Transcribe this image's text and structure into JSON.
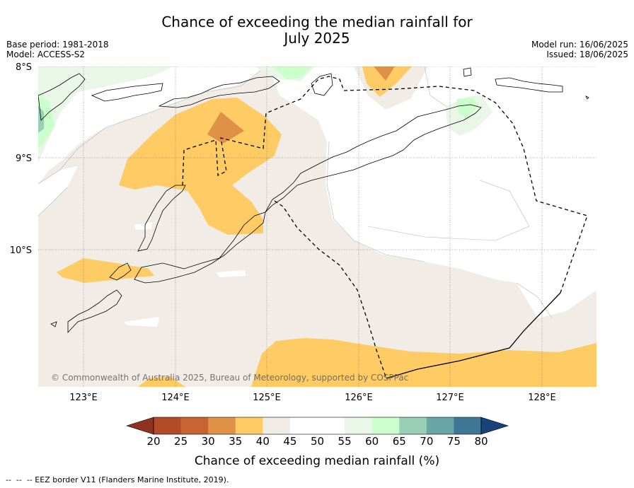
{
  "title_line1": "Chance of exceeding the median rainfall for",
  "title_line2": "July 2025",
  "base_period": "Base period: 1981-2018",
  "model": "Model: ACCESS-S2",
  "model_run": "Model run: 16/06/2025",
  "issued": "Issued: 18/06/2025",
  "lat_labels": [
    "8°S",
    "9°S",
    "10°S"
  ],
  "lon_labels": [
    "123°E",
    "124°E",
    "125°E",
    "126°E",
    "127°E",
    "128°E"
  ],
  "copyright": "© Commonwealth of Australia 2025, Bureau of Meteorology, supported by COSPPac",
  "colorbar": {
    "title": "Chance of exceeding median rainfall (%)",
    "ticks": [
      "20",
      "25",
      "30",
      "35",
      "40",
      "45",
      "50",
      "55",
      "60",
      "65",
      "70",
      "75",
      "80"
    ],
    "colors": [
      "#b14b28",
      "#c86432",
      "#df9147",
      "#fecb64",
      "#f1ece6",
      "#ffffff",
      "#ffffff",
      "#e9f6e8",
      "#cbffcb",
      "#98cfb6",
      "#6aa5a7",
      "#3f7896",
      "#1a4f86"
    ],
    "under_color": "#8e3321",
    "over_color": "#17427a"
  },
  "footer": "--  --  -- EEZ border V11 (Flanders Marine Institute, 2019)."
}
